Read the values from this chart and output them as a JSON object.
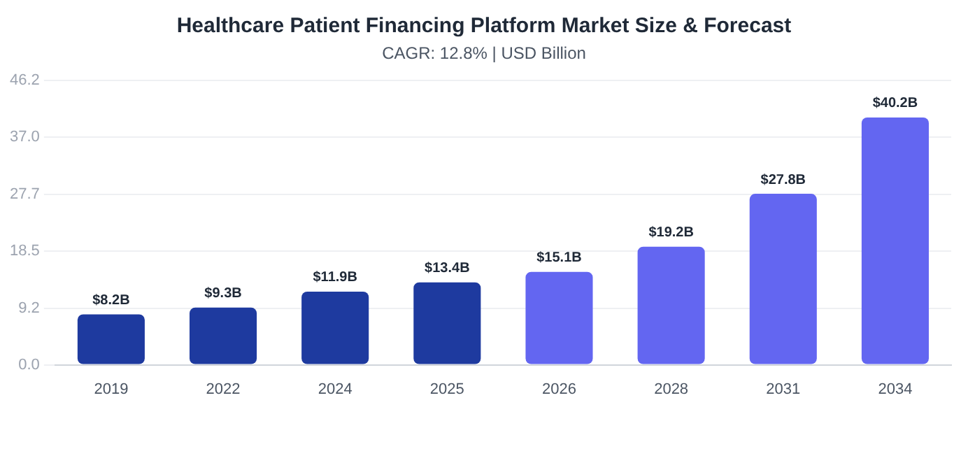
{
  "chart_data": {
    "type": "bar",
    "title": "Healthcare Patient Financing Platform Market Size & Forecast",
    "subtitle": "CAGR: 12.8% | USD Billion",
    "categories": [
      "2019",
      "2022",
      "2024",
      "2025",
      "2026",
      "2028",
      "2031",
      "2034"
    ],
    "values": [
      8.2,
      9.3,
      11.9,
      13.4,
      15.1,
      19.2,
      27.8,
      40.2
    ],
    "colors": [
      "#1e3a9f",
      "#1e3a9f",
      "#1e3a9f",
      "#1e3a9f",
      "#6366f1",
      "#6366f1",
      "#6366f1",
      "#6366f1"
    ],
    "value_labels": [
      "$8.2B",
      "$9.3B",
      "$11.9B",
      "$13.4B",
      "$15.1B",
      "$19.2B",
      "$27.8B",
      "$40.2B"
    ],
    "ylim": [
      0,
      46.2
    ],
    "yticks": [
      {
        "value": 0,
        "label": "0.0"
      },
      9.2,
      18.5,
      27.7,
      {
        "value": 37,
        "label": "37.0"
      },
      46.2
    ],
    "grid": "y"
  }
}
